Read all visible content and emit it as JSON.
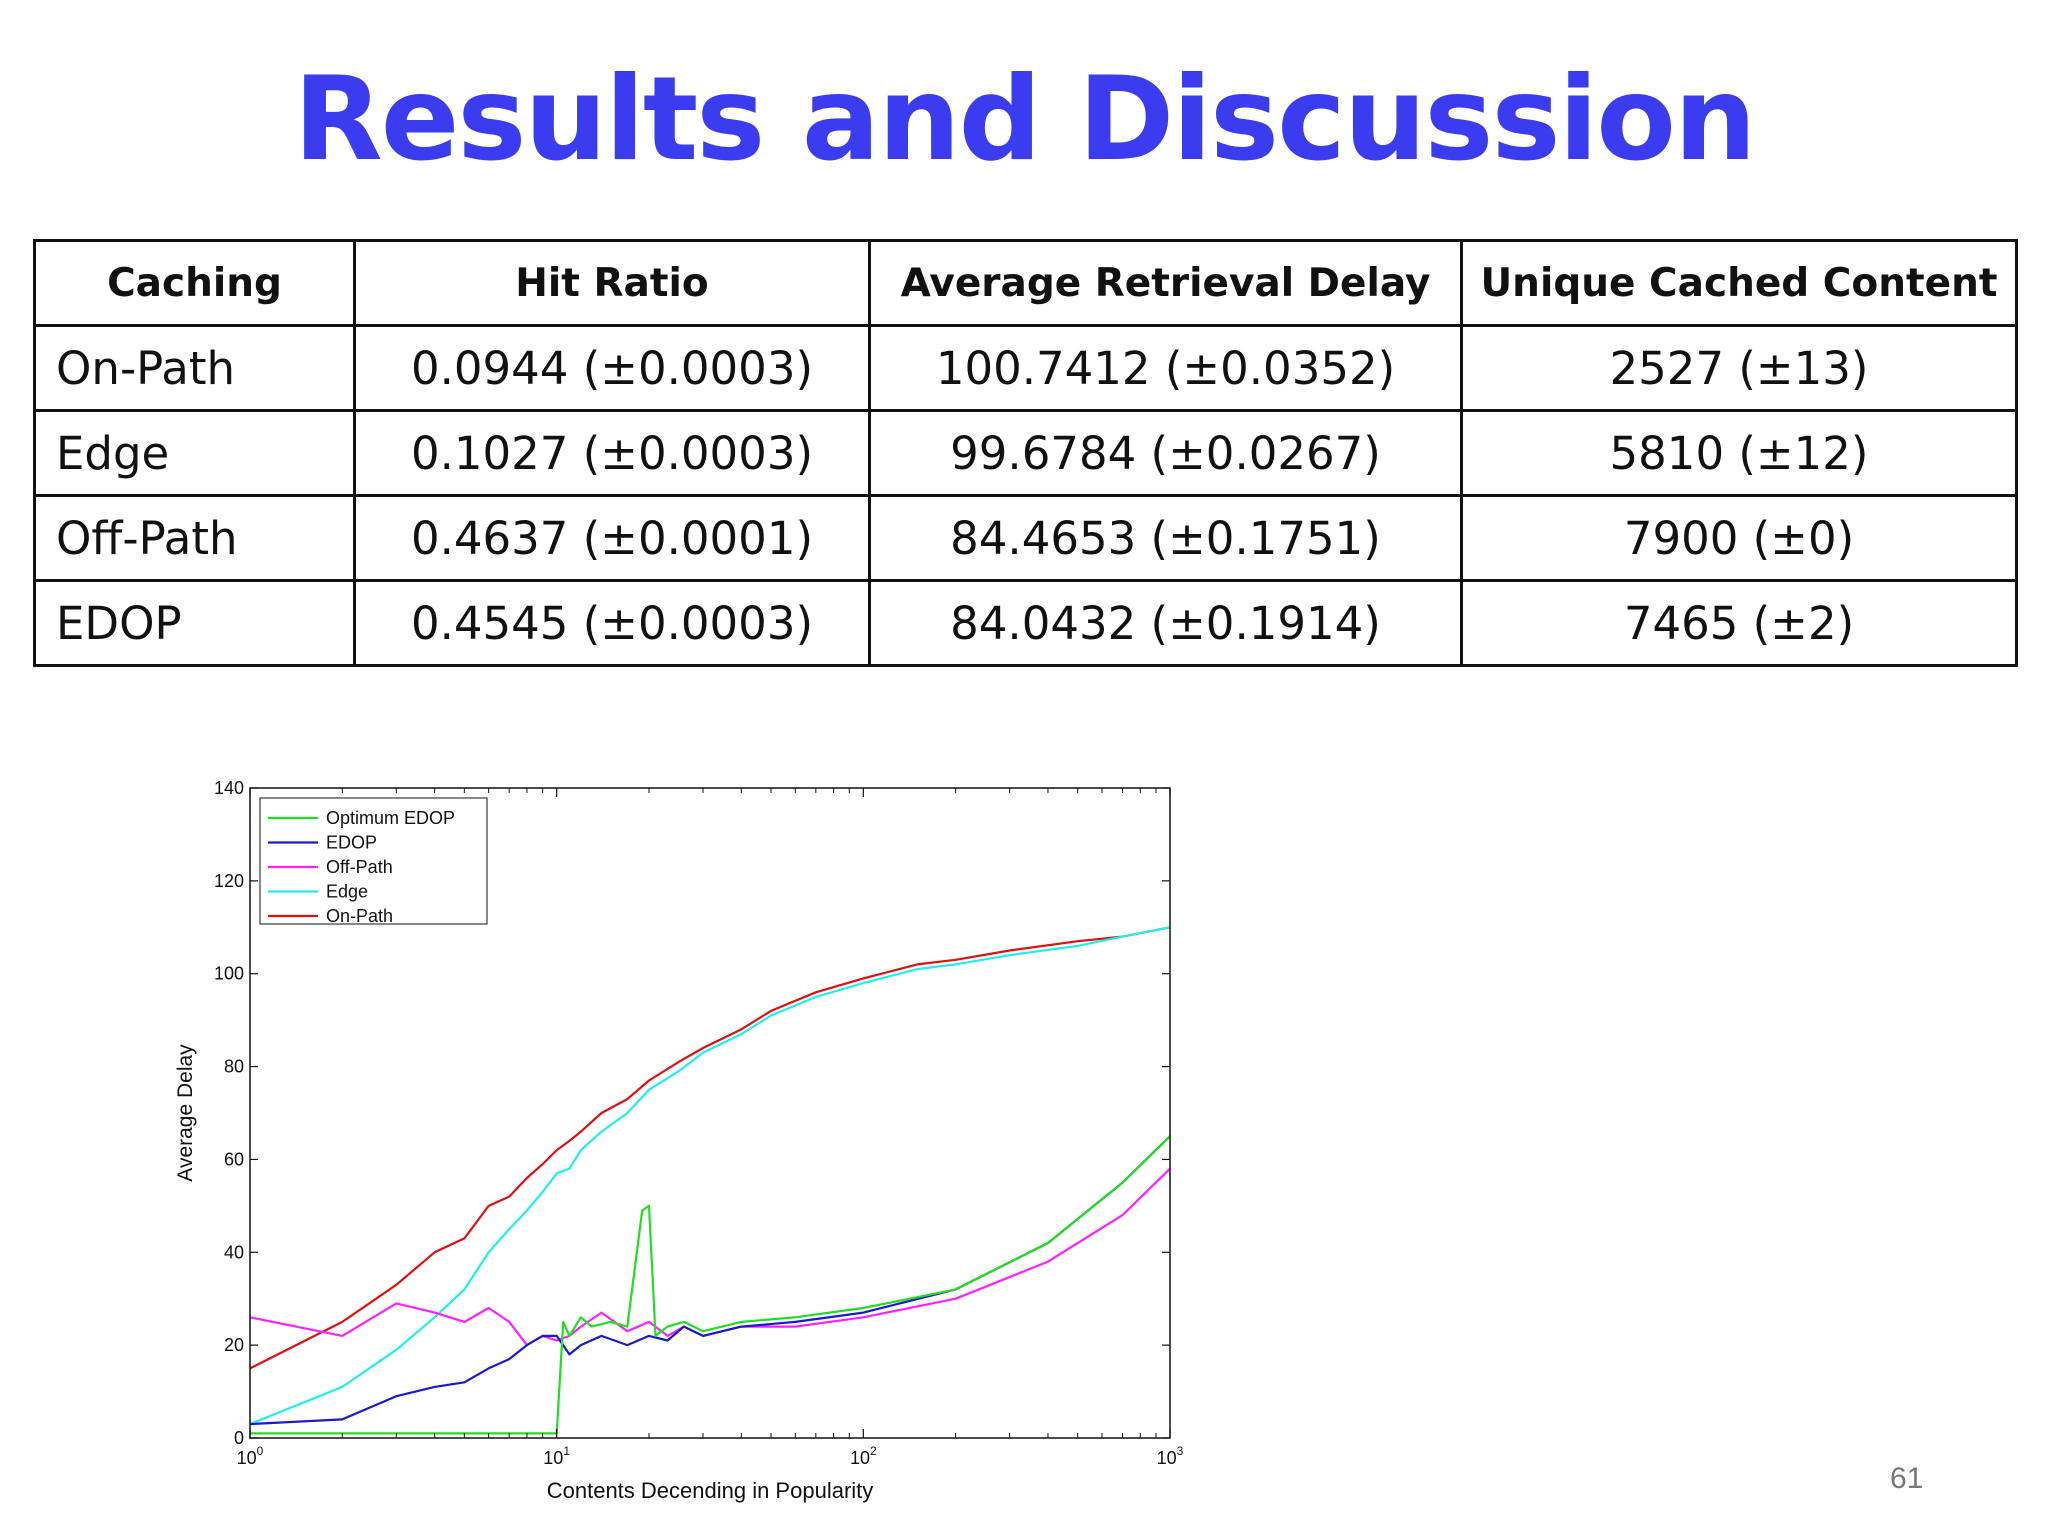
{
  "slide": {
    "title": "Results and Discussion",
    "page_number": "61"
  },
  "table": {
    "headers": [
      "Caching",
      "Hit Ratio",
      "Average Retrieval Delay",
      "Unique Cached Content"
    ],
    "rows": [
      [
        "On-Path",
        "0.0944 (±0.0003)",
        "100.7412 (±0.0352)",
        "2527 (±13)"
      ],
      [
        "Edge",
        "0.1027 (±0.0003)",
        "99.6784 (±0.0267)",
        "5810 (±12)"
      ],
      [
        "Off-Path",
        "0.4637 (±0.0001)",
        "84.4653 (±0.1751)",
        "7900 (±0)"
      ],
      [
        "EDOP",
        "0.4545 (±0.0003)",
        "84.0432 (±0.1914)",
        "7465 (±2)"
      ]
    ]
  },
  "chart_data": {
    "type": "line",
    "xlabel": "Contents Decending in Popularity",
    "ylabel": "Average Delay",
    "xscale": "log",
    "xlim": [
      1,
      1000
    ],
    "ylim": [
      0,
      140
    ],
    "xticks": [
      1,
      10,
      100,
      1000
    ],
    "xtick_labels": [
      {
        "base": "10",
        "exp": "0"
      },
      {
        "base": "10",
        "exp": "1"
      },
      {
        "base": "10",
        "exp": "2"
      },
      {
        "base": "10",
        "exp": "3"
      }
    ],
    "yticks": [
      0,
      20,
      40,
      60,
      80,
      100,
      120,
      140
    ],
    "grid": false,
    "legend_position": "top-left",
    "series": [
      {
        "name": "Optimum EDOP",
        "color": "#22dd22",
        "x": [
          1,
          10,
          10.5,
          11,
          12,
          13,
          15,
          17,
          19,
          20,
          21,
          23,
          26,
          30,
          40,
          60,
          100,
          200,
          400,
          700,
          1000
        ],
        "y": [
          1,
          1,
          25,
          22,
          26,
          24,
          25,
          24,
          49,
          50,
          22,
          24,
          25,
          23,
          25,
          26,
          28,
          32,
          42,
          55,
          65
        ]
      },
      {
        "name": "EDOP",
        "color": "#1a1acc",
        "x": [
          1,
          2,
          3,
          4,
          5,
          6,
          7,
          8,
          9,
          10,
          11,
          12,
          14,
          17,
          20,
          23,
          26,
          30,
          40,
          60,
          100,
          200,
          400,
          700,
          1000
        ],
        "y": [
          3,
          4,
          9,
          11,
          12,
          15,
          17,
          20,
          22,
          22,
          18,
          20,
          22,
          20,
          22,
          21,
          24,
          22,
          24,
          25,
          27,
          32,
          42,
          55,
          65
        ]
      },
      {
        "name": "Off-Path",
        "color": "#ff22ff",
        "x": [
          1,
          2,
          3,
          4,
          5,
          6,
          7,
          8,
          9,
          10,
          11,
          12,
          14,
          17,
          20,
          23,
          26,
          30,
          40,
          60,
          100,
          200,
          400,
          700,
          1000
        ],
        "y": [
          26,
          22,
          29,
          27,
          25,
          28,
          25,
          20,
          22,
          21,
          22,
          24,
          27,
          23,
          25,
          22,
          24,
          22,
          24,
          24,
          26,
          30,
          38,
          48,
          58
        ]
      },
      {
        "name": "Edge",
        "color": "#22eeee",
        "x": [
          1,
          2,
          3,
          4,
          5,
          6,
          7,
          8,
          9,
          10,
          11,
          12,
          14,
          17,
          20,
          25,
          30,
          40,
          50,
          70,
          100,
          150,
          200,
          300,
          500,
          700,
          1000
        ],
        "y": [
          3,
          11,
          19,
          26,
          32,
          40,
          45,
          49,
          53,
          57,
          58,
          62,
          66,
          70,
          75,
          79,
          83,
          87,
          91,
          95,
          98,
          101,
          102,
          104,
          106,
          108,
          110
        ]
      },
      {
        "name": "On-Path",
        "color": "#e01010",
        "x": [
          1,
          2,
          3,
          4,
          5,
          6,
          7,
          8,
          9,
          10,
          11,
          12,
          14,
          17,
          20,
          25,
          30,
          40,
          50,
          70,
          100,
          150,
          200,
          300,
          500,
          700,
          1000
        ],
        "y": [
          15,
          25,
          33,
          40,
          43,
          50,
          52,
          56,
          59,
          62,
          64,
          66,
          70,
          73,
          77,
          81,
          84,
          88,
          92,
          96,
          99,
          102,
          103,
          105,
          107,
          108,
          110
        ]
      }
    ]
  }
}
